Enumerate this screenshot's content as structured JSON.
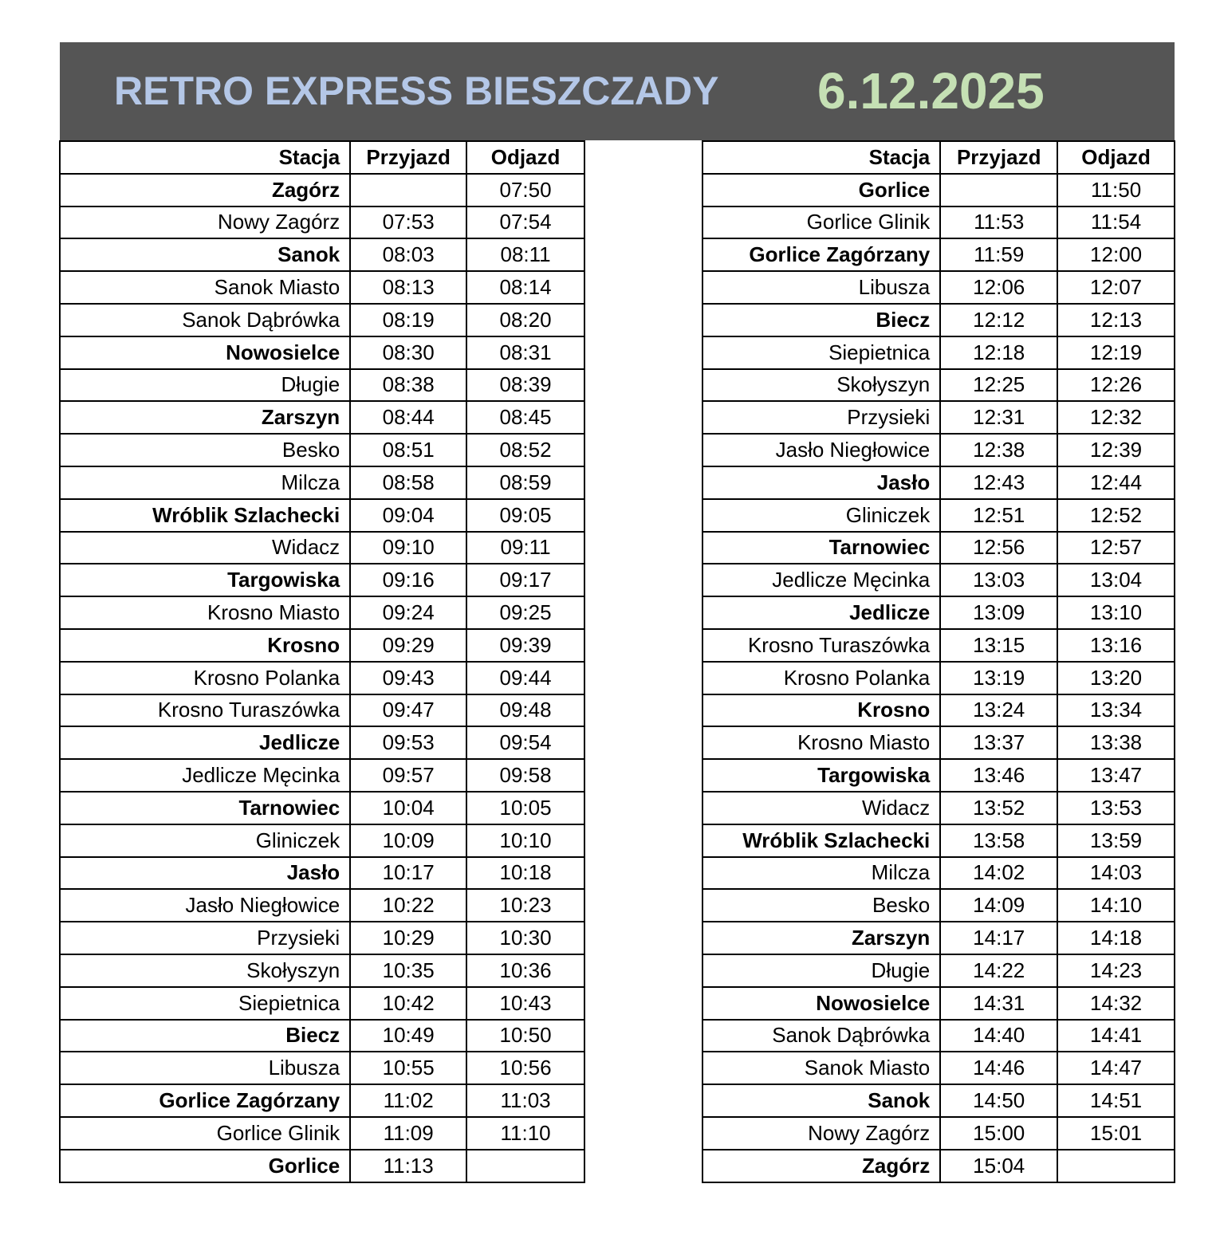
{
  "header": {
    "title": "RETRO EXPRESS BIESZCZADY",
    "date": "6.12.2025",
    "title_color": "#b4c7e7",
    "date_color": "#c5e0b4",
    "background": "#555555"
  },
  "columns": [
    "Stacja",
    "Przyjazd",
    "Odjazd"
  ],
  "tables": [
    {
      "rows": [
        {
          "station": "Zagórz",
          "arrival": "",
          "departure": "07:50",
          "bold": true
        },
        {
          "station": "Nowy Zagórz",
          "arrival": "07:53",
          "departure": "07:54",
          "bold": false
        },
        {
          "station": "Sanok",
          "arrival": "08:03",
          "departure": "08:11",
          "bold": true
        },
        {
          "station": "Sanok Miasto",
          "arrival": "08:13",
          "departure": "08:14",
          "bold": false
        },
        {
          "station": "Sanok Dąbrówka",
          "arrival": "08:19",
          "departure": "08:20",
          "bold": false
        },
        {
          "station": "Nowosielce",
          "arrival": "08:30",
          "departure": "08:31",
          "bold": true
        },
        {
          "station": "Długie",
          "arrival": "08:38",
          "departure": "08:39",
          "bold": false
        },
        {
          "station": "Zarszyn",
          "arrival": "08:44",
          "departure": "08:45",
          "bold": true
        },
        {
          "station": "Besko",
          "arrival": "08:51",
          "departure": "08:52",
          "bold": false
        },
        {
          "station": "Milcza",
          "arrival": "08:58",
          "departure": "08:59",
          "bold": false
        },
        {
          "station": "Wróblik Szlachecki",
          "arrival": "09:04",
          "departure": "09:05",
          "bold": true
        },
        {
          "station": "Widacz",
          "arrival": "09:10",
          "departure": "09:11",
          "bold": false
        },
        {
          "station": "Targowiska",
          "arrival": "09:16",
          "departure": "09:17",
          "bold": true
        },
        {
          "station": "Krosno Miasto",
          "arrival": "09:24",
          "departure": "09:25",
          "bold": false
        },
        {
          "station": "Krosno",
          "arrival": "09:29",
          "departure": "09:39",
          "bold": true
        },
        {
          "station": "Krosno Polanka",
          "arrival": "09:43",
          "departure": "09:44",
          "bold": false
        },
        {
          "station": "Krosno Turaszówka",
          "arrival": "09:47",
          "departure": "09:48",
          "bold": false
        },
        {
          "station": "Jedlicze",
          "arrival": "09:53",
          "departure": "09:54",
          "bold": true
        },
        {
          "station": "Jedlicze Męcinka",
          "arrival": "09:57",
          "departure": "09:58",
          "bold": false
        },
        {
          "station": "Tarnowiec",
          "arrival": "10:04",
          "departure": "10:05",
          "bold": true
        },
        {
          "station": "Gliniczek",
          "arrival": "10:09",
          "departure": "10:10",
          "bold": false
        },
        {
          "station": "Jasło",
          "arrival": "10:17",
          "departure": "10:18",
          "bold": true
        },
        {
          "station": "Jasło Niegłowice",
          "arrival": "10:22",
          "departure": "10:23",
          "bold": false
        },
        {
          "station": "Przysieki",
          "arrival": "10:29",
          "departure": "10:30",
          "bold": false
        },
        {
          "station": "Skołyszyn",
          "arrival": "10:35",
          "departure": "10:36",
          "bold": false
        },
        {
          "station": "Siepietnica",
          "arrival": "10:42",
          "departure": "10:43",
          "bold": false
        },
        {
          "station": "Biecz",
          "arrival": "10:49",
          "departure": "10:50",
          "bold": true
        },
        {
          "station": "Libusza",
          "arrival": "10:55",
          "departure": "10:56",
          "bold": false
        },
        {
          "station": "Gorlice Zagórzany",
          "arrival": "11:02",
          "departure": "11:03",
          "bold": true
        },
        {
          "station": "Gorlice Glinik",
          "arrival": "11:09",
          "departure": "11:10",
          "bold": false
        },
        {
          "station": "Gorlice",
          "arrival": "11:13",
          "departure": "",
          "bold": true
        }
      ]
    },
    {
      "rows": [
        {
          "station": "Gorlice",
          "arrival": "",
          "departure": "11:50",
          "bold": true
        },
        {
          "station": "Gorlice Glinik",
          "arrival": "11:53",
          "departure": "11:54",
          "bold": false
        },
        {
          "station": "Gorlice Zagórzany",
          "arrival": "11:59",
          "departure": "12:00",
          "bold": true
        },
        {
          "station": "Libusza",
          "arrival": "12:06",
          "departure": "12:07",
          "bold": false
        },
        {
          "station": "Biecz",
          "arrival": "12:12",
          "departure": "12:13",
          "bold": true
        },
        {
          "station": "Siepietnica",
          "arrival": "12:18",
          "departure": "12:19",
          "bold": false
        },
        {
          "station": "Skołyszyn",
          "arrival": "12:25",
          "departure": "12:26",
          "bold": false
        },
        {
          "station": "Przysieki",
          "arrival": "12:31",
          "departure": "12:32",
          "bold": false
        },
        {
          "station": "Jasło Niegłowice",
          "arrival": "12:38",
          "departure": "12:39",
          "bold": false
        },
        {
          "station": "Jasło",
          "arrival": "12:43",
          "departure": "12:44",
          "bold": true
        },
        {
          "station": "Gliniczek",
          "arrival": "12:51",
          "departure": "12:52",
          "bold": false
        },
        {
          "station": "Tarnowiec",
          "arrival": "12:56",
          "departure": "12:57",
          "bold": true
        },
        {
          "station": "Jedlicze Męcinka",
          "arrival": "13:03",
          "departure": "13:04",
          "bold": false
        },
        {
          "station": "Jedlicze",
          "arrival": "13:09",
          "departure": "13:10",
          "bold": true
        },
        {
          "station": "Krosno Turaszówka",
          "arrival": "13:15",
          "departure": "13:16",
          "bold": false
        },
        {
          "station": "Krosno Polanka",
          "arrival": "13:19",
          "departure": "13:20",
          "bold": false
        },
        {
          "station": "Krosno",
          "arrival": "13:24",
          "departure": "13:34",
          "bold": true
        },
        {
          "station": "Krosno Miasto",
          "arrival": "13:37",
          "departure": "13:38",
          "bold": false
        },
        {
          "station": "Targowiska",
          "arrival": "13:46",
          "departure": "13:47",
          "bold": true
        },
        {
          "station": "Widacz",
          "arrival": "13:52",
          "departure": "13:53",
          "bold": false
        },
        {
          "station": "Wróblik Szlachecki",
          "arrival": "13:58",
          "departure": "13:59",
          "bold": true
        },
        {
          "station": "Milcza",
          "arrival": "14:02",
          "departure": "14:03",
          "bold": false
        },
        {
          "station": "Besko",
          "arrival": "14:09",
          "departure": "14:10",
          "bold": false
        },
        {
          "station": "Zarszyn",
          "arrival": "14:17",
          "departure": "14:18",
          "bold": true
        },
        {
          "station": "Długie",
          "arrival": "14:22",
          "departure": "14:23",
          "bold": false
        },
        {
          "station": "Nowosielce",
          "arrival": "14:31",
          "departure": "14:32",
          "bold": true
        },
        {
          "station": "Sanok Dąbrówka",
          "arrival": "14:40",
          "departure": "14:41",
          "bold": false
        },
        {
          "station": "Sanok Miasto",
          "arrival": "14:46",
          "departure": "14:47",
          "bold": false
        },
        {
          "station": "Sanok",
          "arrival": "14:50",
          "departure": "14:51",
          "bold": true
        },
        {
          "station": "Nowy Zagórz",
          "arrival": "15:00",
          "departure": "15:01",
          "bold": false
        },
        {
          "station": "Zagórz",
          "arrival": "15:04",
          "departure": "",
          "bold": true
        }
      ]
    }
  ]
}
